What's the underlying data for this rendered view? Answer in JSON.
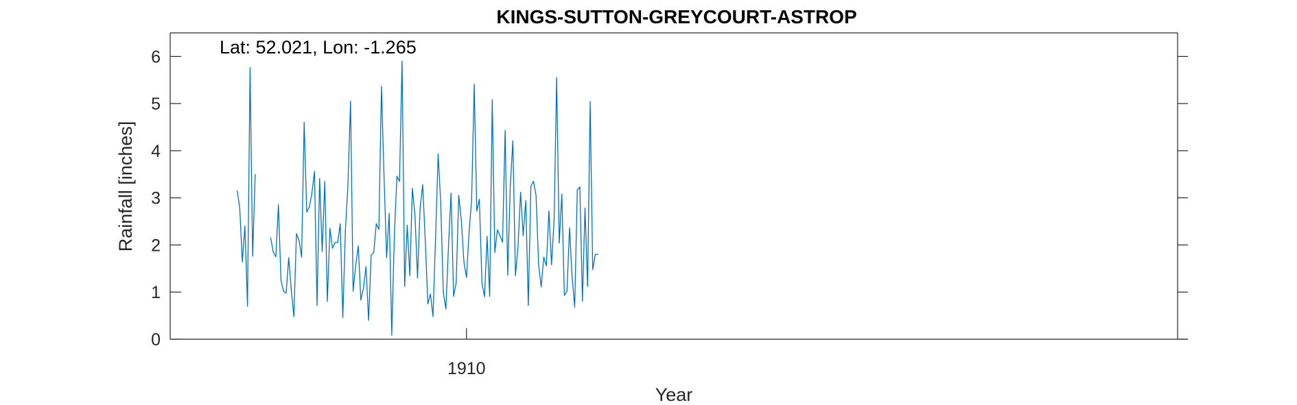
{
  "chart_data": {
    "type": "line",
    "title": "KINGS-SUTTON-GREYCOURT-ASTROP",
    "annotation": "Lat: 52.021, Lon: -1.265",
    "xlabel": "Year",
    "ylabel": "Rainfall [inches]",
    "x_unit": "year (monthly samples)",
    "xlim": [
      1900.4167,
      1933.0
    ],
    "ylim": [
      0,
      6.5
    ],
    "xticks": [
      1910
    ],
    "xtick_labels": [
      "1910"
    ],
    "yticks": [
      0,
      1,
      2,
      3,
      4,
      5,
      6
    ],
    "ytick_labels": [
      "0",
      "1",
      "2",
      "3",
      "4",
      "5",
      "6"
    ],
    "grid": false,
    "series": [
      {
        "color": "#0072BD",
        "segments": [
          {
            "x_start": 1902.5833,
            "step": 0.0833333,
            "values": [
              3.15,
              2.78,
              1.64,
              2.4,
              0.7,
              5.76,
              1.76,
              3.5
            ]
          },
          {
            "x_start": 1903.6667,
            "step": 0.0833333,
            "values": [
              2.15,
              1.85,
              1.75,
              2.85,
              1.25,
              1.02,
              0.98,
              1.73,
              1.05,
              0.48,
              2.24,
              2.1,
              1.74,
              4.6,
              2.7,
              2.8,
              3.1,
              3.56,
              0.72,
              3.41,
              1.86,
              3.35,
              0.8,
              2.35,
              1.93,
              2.05,
              2.05,
              2.45,
              0.46,
              2.3,
              3.3,
              5.05,
              1.02,
              1.56,
              1.98,
              0.83,
              1.08,
              1.54,
              0.4,
              1.78,
              1.84,
              2.45,
              2.33,
              5.36,
              3.45,
              1.73,
              2.67,
              0.09,
              2.2,
              3.46,
              3.35,
              5.9,
              1.12,
              2.42,
              1.35,
              3.2,
              2.64,
              1.3,
              2.78,
              3.28,
              2.1,
              0.75,
              0.96,
              0.48,
              2.15,
              3.93,
              2.9,
              1.0,
              0.64,
              1.95,
              3.1,
              0.91,
              1.2,
              3.05,
              2.52,
              1.64,
              1.31,
              2.27,
              2.97,
              5.41,
              2.72,
              2.97,
              1.2,
              0.9,
              2.18,
              0.91,
              5.08,
              1.84,
              2.32,
              2.2,
              2.06,
              4.43,
              1.36,
              3.26,
              4.21,
              1.35,
              1.96,
              3.12,
              2.2,
              2.94,
              0.72,
              3.25,
              3.35,
              3.05,
              1.58,
              1.11,
              1.74,
              1.56,
              2.72,
              1.58,
              2.52,
              5.55,
              2.04,
              3.08,
              0.93,
              1.02,
              2.36,
              1.32,
              0.68,
              3.17,
              3.23,
              0.81,
              2.78,
              1.12,
              5.04,
              1.48,
              1.8,
              1.8
            ]
          }
        ]
      }
    ]
  }
}
